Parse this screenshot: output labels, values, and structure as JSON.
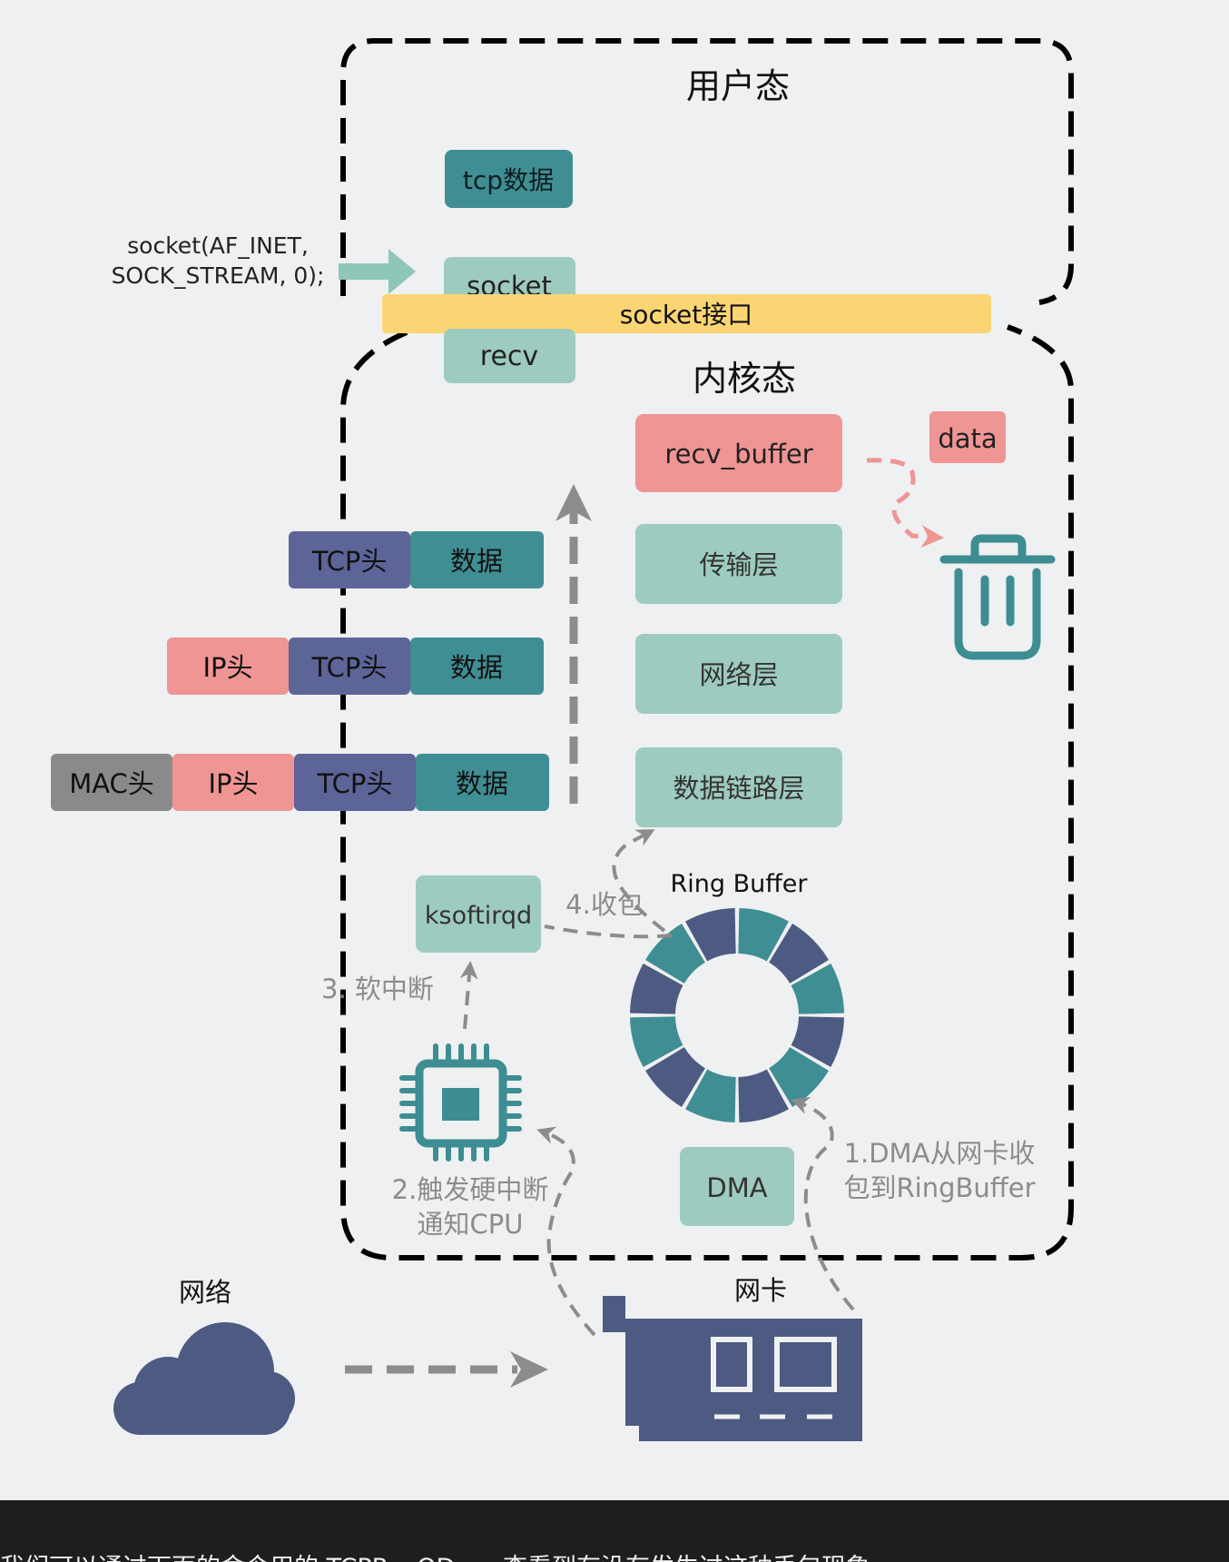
{
  "colors": {
    "background": "#eef0f2",
    "dark_teal": "#3f8e93",
    "light_teal": "#9ecbbf",
    "pink": "#ef9593",
    "navy": "#5d6497",
    "gray_box": "#8a8a8a",
    "yellow_bar": "#fbd574",
    "icon_navy": "#4d5b82",
    "trash_teal": "#3d8d92",
    "arrow_gray": "#8c8c8c",
    "caption_bg": "#1e1e1e"
  },
  "user_space": {
    "title": "用户态",
    "tcp_data": "tcp数据",
    "socket_box": "socket",
    "socket_call": [
      "socket(AF_INET,",
      "SOCK_STREAM, 0);"
    ]
  },
  "socket_interface": "socket接口",
  "kernel": {
    "title": "内核态",
    "recv": "recv",
    "recv_buffer": "recv_buffer",
    "data_tag": "data",
    "layers": [
      "传输层",
      "网络层",
      "数据链路层"
    ],
    "ring_buffer_label": "Ring Buffer",
    "ksoftirqd": "ksoftirqd",
    "dma": "DMA"
  },
  "packets": {
    "row1": [
      "TCP头",
      "数据"
    ],
    "row2": [
      "IP头",
      "TCP头",
      "数据"
    ],
    "row3": [
      "MAC头",
      "IP头",
      "TCP头",
      "数据"
    ]
  },
  "steps": {
    "step1": [
      "1.DMA从网卡收",
      "包到RingBuffer"
    ],
    "step2": [
      "2.触发硬中断",
      "通知CPU"
    ],
    "step3": "3. 软中断",
    "step4": "4.收包"
  },
  "icons": {
    "trash": "trash-icon",
    "cpu": "cpu-chip-icon",
    "cloud": "cloud-icon",
    "nic": "network-card-icon"
  },
  "network_label": "网络",
  "nic_label": "网卡",
  "caption": "我们可以通过下面的命令用的 TCPRcvQDrop 查看到有没有发生过这种丢包现象"
}
